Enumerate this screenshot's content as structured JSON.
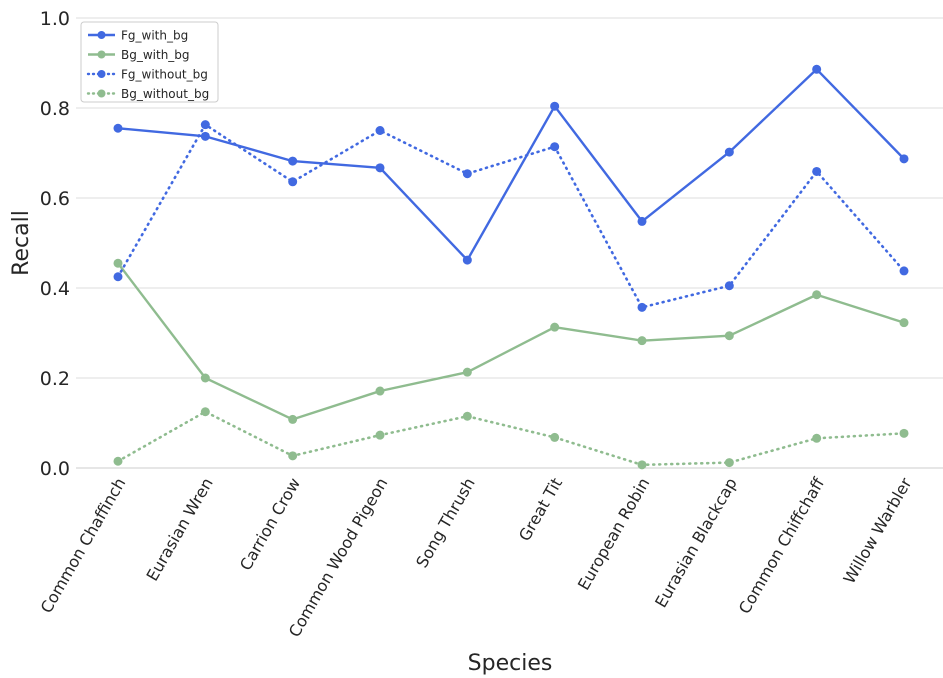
{
  "chart_data": {
    "type": "line",
    "xlabel": "Species",
    "ylabel": "Recall",
    "ylim": [
      0,
      1.0
    ],
    "yticks": [
      "0.0",
      "0.2",
      "0.4",
      "0.6",
      "0.8",
      "1.0"
    ],
    "grid": "horizontal",
    "legend_position": "top-left",
    "categories": [
      "Common Chaffinch",
      "Eurasian Wren",
      "Carrion Crow",
      "Common Wood Pigeon",
      "Song Thrush",
      "Great Tit",
      "European Robin",
      "Eurasian Blackcap",
      "Common Chiffchaff",
      "Willow Warbler"
    ],
    "series": [
      {
        "name": "Fg_with_bg",
        "color": "#4169e1",
        "style": "solid",
        "values": [
          0.755,
          0.737,
          0.682,
          0.667,
          0.462,
          0.804,
          0.548,
          0.702,
          0.886,
          0.687
        ]
      },
      {
        "name": "Bg_with_bg",
        "color": "#8fbc8f",
        "style": "solid",
        "values": [
          0.455,
          0.2,
          0.108,
          0.171,
          0.213,
          0.313,
          0.283,
          0.294,
          0.385,
          0.323
        ]
      },
      {
        "name": "Fg_without_bg",
        "color": "#4169e1",
        "style": "dotted",
        "values": [
          0.425,
          0.763,
          0.636,
          0.75,
          0.654,
          0.714,
          0.357,
          0.405,
          0.659,
          0.438
        ]
      },
      {
        "name": "Bg_without_bg",
        "color": "#8fbc8f",
        "style": "dotted",
        "values": [
          0.015,
          0.125,
          0.027,
          0.073,
          0.115,
          0.068,
          0.007,
          0.012,
          0.066,
          0.077
        ]
      }
    ]
  }
}
